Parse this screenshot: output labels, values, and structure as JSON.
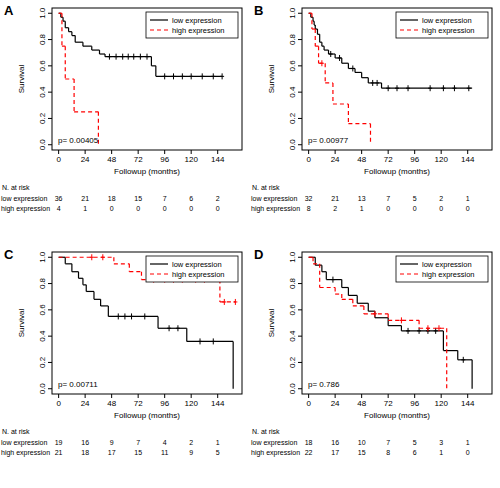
{
  "chart_data": [
    {
      "type": "survival",
      "label": "A",
      "annotation": "p= 0.00405",
      "xlabel": "Followup (months)",
      "ylabel": "Survival",
      "at_risk_title": "N. at risk",
      "xlim": [
        -6,
        166
      ],
      "ylim": [
        -0.04,
        1.04
      ],
      "xticks": [
        0,
        24,
        48,
        72,
        96,
        120,
        144
      ],
      "yticks": [
        {
          "value": 0,
          "label": "0.0"
        },
        0.2,
        0.4,
        0.6,
        0.8,
        {
          "value": 1,
          "label": "1.0"
        }
      ],
      "grid": false,
      "legend": "top-right",
      "series": [
        {
          "name": "low expression",
          "color": "#000000",
          "line_style": "solid",
          "x": [
            0,
            2,
            4,
            6,
            9,
            12,
            15,
            22,
            30,
            37,
            42,
            84,
            88,
            148
          ],
          "values": [
            1,
            0.97,
            0.94,
            0.89,
            0.86,
            0.83,
            0.78,
            0.75,
            0.72,
            0.69,
            0.67,
            0.6,
            0.52,
            0.52
          ],
          "censor_x": [
            46,
            52,
            58,
            63,
            68,
            74,
            80,
            96,
            104,
            112,
            120,
            130,
            140,
            148
          ],
          "censor_values": [
            0.67,
            0.67,
            0.67,
            0.67,
            0.67,
            0.67,
            0.67,
            0.52,
            0.52,
            0.52,
            0.52,
            0.52,
            0.52,
            0.52
          ],
          "at_risk": [
            36,
            21,
            18,
            15,
            7,
            6,
            2
          ]
        },
        {
          "name": "high expression",
          "color": "#ff0000",
          "line_style": "dashed",
          "x": [
            0,
            3,
            6,
            14,
            36
          ],
          "values": [
            1,
            0.75,
            0.5,
            0.25,
            0
          ],
          "censor_x": [],
          "censor_values": [],
          "at_risk": [
            4,
            1,
            0,
            0,
            0,
            0,
            0
          ]
        }
      ]
    },
    {
      "type": "survival",
      "label": "B",
      "annotation": "p= 0.00977",
      "xlabel": "Followup (months)",
      "ylabel": "Survival",
      "at_risk_title": "N. at risk",
      "xlim": [
        -6,
        166
      ],
      "ylim": [
        -0.04,
        1.04
      ],
      "xticks": [
        0,
        24,
        48,
        72,
        96,
        120,
        144
      ],
      "yticks": [
        {
          "value": 0,
          "label": "0.0"
        },
        0.2,
        0.4,
        0.6,
        0.8,
        {
          "value": 1,
          "label": "1.0"
        }
      ],
      "grid": false,
      "legend": "top-right",
      "series": [
        {
          "name": "low expression",
          "color": "#000000",
          "line_style": "solid",
          "x": [
            0,
            2,
            4,
            5,
            6,
            8,
            10,
            12,
            14,
            18,
            24,
            30,
            36,
            42,
            48,
            54,
            66,
            148
          ],
          "values": [
            1,
            0.97,
            0.94,
            0.91,
            0.88,
            0.84,
            0.78,
            0.75,
            0.72,
            0.69,
            0.66,
            0.62,
            0.58,
            0.55,
            0.51,
            0.47,
            0.43,
            0.43
          ],
          "censor_x": [
            20,
            28,
            40,
            58,
            62,
            72,
            80,
            90,
            110,
            122,
            132,
            145
          ],
          "censor_values": [
            0.69,
            0.66,
            0.58,
            0.47,
            0.47,
            0.43,
            0.43,
            0.43,
            0.43,
            0.43,
            0.43,
            0.43
          ],
          "at_risk": [
            32,
            21,
            13,
            7,
            5,
            2,
            1
          ]
        },
        {
          "name": "high expression",
          "color": "#ff0000",
          "line_style": "dashed",
          "x": [
            0,
            3,
            6,
            9,
            15,
            22,
            36,
            56
          ],
          "values": [
            1,
            0.88,
            0.75,
            0.62,
            0.47,
            0.31,
            0.16,
            0
          ],
          "censor_x": [
            12
          ],
          "censor_values": [
            0.62
          ],
          "at_risk": [
            8,
            2,
            1,
            0,
            0,
            0,
            0
          ]
        }
      ]
    },
    {
      "type": "survival",
      "label": "C",
      "annotation": "p= 0.00711",
      "xlabel": "Followup (months)",
      "ylabel": "Survival",
      "at_risk_title": "N. at risk",
      "xlim": [
        -6,
        166
      ],
      "ylim": [
        -0.04,
        1.04
      ],
      "xticks": [
        0,
        24,
        48,
        72,
        96,
        120,
        144
      ],
      "yticks": [
        {
          "value": 0,
          "label": "0.0"
        },
        0.2,
        0.4,
        0.6,
        0.8,
        {
          "value": 1,
          "label": "1.0"
        }
      ],
      "grid": false,
      "legend": "top-right",
      "series": [
        {
          "name": "low expression",
          "color": "#000000",
          "line_style": "solid",
          "x": [
            0,
            6,
            12,
            18,
            22,
            25,
            32,
            38,
            45,
            90,
            116,
            158
          ],
          "values": [
            1,
            0.95,
            0.89,
            0.84,
            0.79,
            0.74,
            0.68,
            0.63,
            0.55,
            0.46,
            0.36,
            0
          ],
          "censor_x": [
            54,
            60,
            66,
            78,
            100,
            108,
            128,
            140
          ],
          "censor_values": [
            0.55,
            0.55,
            0.55,
            0.55,
            0.46,
            0.46,
            0.36,
            0.36
          ],
          "at_risk": [
            19,
            16,
            9,
            7,
            4,
            2,
            1
          ]
        },
        {
          "name": "high expression",
          "color": "#ff0000",
          "line_style": "dashed",
          "x": [
            0,
            50,
            64,
            75,
            146,
            160
          ],
          "values": [
            1,
            0.95,
            0.89,
            0.83,
            0.66,
            0.66
          ],
          "censor_x": [
            30,
            40,
            86,
            96,
            104,
            112,
            124,
            132,
            150,
            160
          ],
          "censor_values": [
            1,
            1,
            0.83,
            0.83,
            0.83,
            0.83,
            0.83,
            0.83,
            0.66,
            0.66
          ],
          "at_risk": [
            21,
            18,
            17,
            15,
            11,
            9,
            5
          ]
        }
      ]
    },
    {
      "type": "survival",
      "label": "D",
      "annotation": "p= 0.786",
      "xlabel": "Followup (months)",
      "ylabel": "Survival",
      "at_risk_title": "N. at risk",
      "xlim": [
        -6,
        166
      ],
      "ylim": [
        -0.04,
        1.04
      ],
      "xticks": [
        0,
        24,
        48,
        72,
        96,
        120,
        144
      ],
      "yticks": [
        {
          "value": 0,
          "label": "0.0"
        },
        0.2,
        0.4,
        0.6,
        0.8,
        {
          "value": 1,
          "label": "1.0"
        }
      ],
      "grid": false,
      "legend": "top-right",
      "series": [
        {
          "name": "low expression",
          "color": "#000000",
          "line_style": "solid",
          "x": [
            0,
            6,
            12,
            16,
            30,
            36,
            44,
            54,
            60,
            72,
            84,
            122,
            135,
            148
          ],
          "values": [
            1,
            0.94,
            0.89,
            0.83,
            0.77,
            0.71,
            0.65,
            0.59,
            0.54,
            0.48,
            0.44,
            0.29,
            0.22,
            0
          ],
          "censor_x": [
            22,
            90,
            100,
            108,
            115,
            140
          ],
          "censor_values": [
            0.83,
            0.44,
            0.44,
            0.44,
            0.44,
            0.22
          ],
          "at_risk": [
            18,
            16,
            10,
            7,
            5,
            3,
            1
          ]
        },
        {
          "name": "high expression",
          "color": "#ff0000",
          "line_style": "dashed",
          "x": [
            0,
            4,
            10,
            24,
            30,
            40,
            50,
            72,
            100,
            125
          ],
          "values": [
            1,
            0.95,
            0.77,
            0.72,
            0.68,
            0.63,
            0.57,
            0.52,
            0.46,
            0
          ],
          "censor_x": [
            60,
            84,
            108,
            118
          ],
          "censor_values": [
            0.57,
            0.52,
            0.46,
            0.46
          ],
          "at_risk": [
            22,
            17,
            15,
            8,
            6,
            1,
            0
          ]
        }
      ]
    }
  ]
}
